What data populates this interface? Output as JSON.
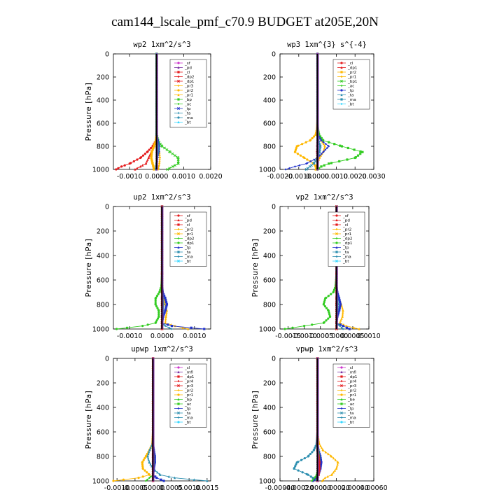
{
  "figure": {
    "title": "cam144_lscale_pmf_c70.9  BUDGET at205E,20N"
  },
  "colors": {
    "red": "#e41a1c",
    "magenta": "#cc33cc",
    "purple": "#7a2fa2",
    "orange": "#ffb800",
    "green": "#33cc22",
    "blue": "#2233cc",
    "teal": "#2d8fb0",
    "cyan": "#33d6ff"
  },
  "chart_data": [
    {
      "type": "line",
      "title": "wp2   1xm^2/s^3",
      "ylabel": "Pressure [hPa]",
      "ylim": [
        1000,
        0
      ],
      "yticks": [
        "0",
        "200",
        "400",
        "600",
        "800",
        "1000"
      ],
      "xlim": [
        -0.0016,
        0.002
      ],
      "xticks": [
        -0.001,
        0.0,
        0.001,
        0.002
      ],
      "xtick_labels": [
        "-0.0010",
        "0.0000",
        "0.0010",
        "0.0020"
      ],
      "grid": false,
      "legend_position": "top-right",
      "legend": [
        "_sf",
        "_pd",
        "_cl",
        "_dp2",
        "_dp1",
        "_pr3",
        "_pr2",
        "_pr1",
        "_bp",
        "_ac",
        "_tp",
        "_ta",
        "_ma",
        "_bt"
      ],
      "legend_colors": [
        "#cc33cc",
        "#7a2fa2",
        "#e41a1c",
        "#e41a1c",
        "#e41a1c",
        "#ffb800",
        "#ffb800",
        "#ffb800",
        "#33cc22",
        "#33cc22",
        "#2233cc",
        "#2d8fb0",
        "#2d8fb0",
        "#33d6ff"
      ],
      "pressure": [
        0,
        500,
        700,
        750,
        800,
        850,
        900,
        950,
        975,
        1000
      ],
      "series": [
        {
          "color": "#e41a1c",
          "values": [
            0,
            0,
            0,
            -3e-05,
            -0.00015,
            -0.00035,
            -0.0006,
            -0.001,
            -0.0013,
            -0.0015
          ]
        },
        {
          "color": "#e41a1c",
          "values": [
            0,
            0,
            0,
            -2e-05,
            -0.0001,
            -0.0002,
            -0.0003,
            -0.0004,
            -0.0006,
            -0.0008
          ]
        },
        {
          "color": "#ffb800",
          "values": [
            0,
            0,
            0,
            -3e-05,
            -0.0001,
            -0.00018,
            -0.0002,
            -0.00015,
            -0.00012,
            -0.0001
          ]
        },
        {
          "color": "#ffb800",
          "values": [
            0,
            0,
            0,
            2e-05,
            6e-05,
            0.0001,
            0.00012,
            0.0001,
            8e-05,
            6e-05
          ]
        },
        {
          "color": "#33cc22",
          "values": [
            0,
            0,
            0,
            5e-05,
            0.0002,
            0.0005,
            0.0008,
            0.0008,
            0.0006,
            0.0004
          ]
        },
        {
          "color": "#2233cc",
          "values": [
            0,
            0,
            0,
            5e-05,
            0.0001,
            8e-05,
            3e-05,
            0.0,
            -2e-05,
            -3e-05
          ]
        },
        {
          "color": "#2d8fb0",
          "values": [
            0,
            0,
            0,
            2e-05,
            5e-05,
            4e-05,
            2e-05,
            0.0,
            -1e-05,
            -2e-05
          ]
        },
        {
          "color": "#7a2fa2",
          "values": [
            0,
            0,
            0,
            0,
            0,
            0,
            0,
            0,
            0,
            0
          ]
        }
      ]
    },
    {
      "type": "line",
      "title": "wp3   1xm^{3} s^{-4}",
      "ylabel": "",
      "ylim": [
        1000,
        0
      ],
      "yticks": [
        "0",
        "200",
        "400",
        "600",
        "800",
        "1000"
      ],
      "xlim": [
        -0.002,
        0.003
      ],
      "xticks": [
        -0.002,
        -0.001,
        0.0,
        0.001,
        0.002,
        0.003
      ],
      "xtick_labels": [
        "-0.0020",
        "-0.0010",
        "0.0000",
        "0.0010",
        "0.0020",
        "0.0030"
      ],
      "grid": false,
      "legend_position": "top-right",
      "legend": [
        "_cl",
        "_dp1",
        "_pr2",
        "_pr1",
        "_bp1",
        "_ac",
        "_tp",
        "_ta",
        "_ma",
        "_bt"
      ],
      "legend_colors": [
        "#e41a1c",
        "#e41a1c",
        "#ffb800",
        "#ffb800",
        "#33cc22",
        "#33cc22",
        "#2233cc",
        "#2d8fb0",
        "#2d8fb0",
        "#33d6ff"
      ],
      "pressure": [
        0,
        550,
        650,
        700,
        750,
        800,
        850,
        900,
        950,
        975,
        1000
      ],
      "series": [
        {
          "color": "#ffb800",
          "values": [
            0,
            0,
            -3e-05,
            -0.0001,
            -0.0004,
            -0.0011,
            -0.0012,
            -0.0007,
            -0.0002,
            -0.0001,
            0.0
          ]
        },
        {
          "color": "#ffb800",
          "values": [
            0,
            0,
            2e-05,
            5e-05,
            0.0002,
            0.0004,
            0.0003,
            0.0001,
            0.0,
            -0.0001,
            -0.0001
          ]
        },
        {
          "color": "#33cc22",
          "values": [
            0,
            0,
            2e-05,
            8e-05,
            0.0003,
            0.0013,
            0.0024,
            0.002,
            0.0006,
            0.0002,
            0.0
          ]
        },
        {
          "color": "#2233cc",
          "values": [
            0,
            0,
            0,
            3e-05,
            0.0002,
            0.0006,
            0.0003,
            0.0,
            -0.0006,
            -0.0012,
            -0.0017
          ]
        },
        {
          "color": "#2d8fb0",
          "values": [
            0,
            0,
            0,
            1e-05,
            5e-05,
            0.00015,
            0.0001,
            0.0,
            -0.0002,
            -0.0004,
            -0.0006
          ]
        },
        {
          "color": "#e41a1c",
          "values": [
            0,
            0,
            0,
            0,
            0,
            -2e-05,
            -3e-05,
            -2e-05,
            0.0,
            0.0,
            0.0
          ]
        },
        {
          "color": "#7a2fa2",
          "values": [
            0,
            0,
            0,
            0,
            0,
            0,
            0,
            0,
            0,
            0,
            0
          ]
        }
      ]
    },
    {
      "type": "line",
      "title": "up2   1xm^2/s^3",
      "ylabel": "Pressure [hPa]",
      "ylim": [
        1000,
        0
      ],
      "yticks": [
        "0",
        "200",
        "400",
        "600",
        "800",
        "1000"
      ],
      "xlim": [
        -0.0015,
        0.0015
      ],
      "xticks": [
        -0.001,
        0.0,
        0.001
      ],
      "xtick_labels": [
        "-0.0010",
        "0.0000",
        "0.0010"
      ],
      "grid": false,
      "legend_position": "top-right",
      "legend": [
        "_sf",
        "_pd",
        "_cl",
        "_pr2",
        "_pr1",
        "_dp2",
        "_dp1",
        "_tp",
        "_ta",
        "_ma",
        "_bt"
      ],
      "legend_colors": [
        "#e41a1c",
        "#e41a1c",
        "#e41a1c",
        "#ffb800",
        "#ffb800",
        "#33cc22",
        "#33cc22",
        "#2233cc",
        "#2d8fb0",
        "#2d8fb0",
        "#33d6ff"
      ],
      "pressure": [
        0,
        550,
        650,
        700,
        750,
        800,
        850,
        900,
        950,
        975,
        1000
      ],
      "series": [
        {
          "color": "#33cc22",
          "values": [
            0,
            0,
            -2e-05,
            -8e-05,
            -0.0002,
            -0.0002,
            -0.0001,
            -0.0001,
            -0.0002,
            -0.0006,
            -0.0014
          ]
        },
        {
          "color": "#ffb800",
          "values": [
            0,
            0,
            0,
            2e-05,
            5e-05,
            0.0001,
            0.00015,
            0.00012,
            0.0001,
            0.0004,
            0.0008
          ]
        },
        {
          "color": "#2233cc",
          "values": [
            0,
            0,
            0,
            2e-05,
            0.0001,
            0.00015,
            0.0001,
            3e-05,
            0.0,
            0.0003,
            0.0013
          ]
        },
        {
          "color": "#2d8fb0",
          "values": [
            0,
            0,
            0,
            1e-05,
            3e-05,
            5e-05,
            3e-05,
            1e-05,
            0.0,
            0.0001,
            0.0003
          ]
        },
        {
          "color": "#e41a1c",
          "values": [
            0,
            0,
            0,
            0,
            0,
            0,
            0,
            0,
            0,
            0,
            0
          ]
        }
      ]
    },
    {
      "type": "line",
      "title": "vp2   1xm^2/s^3",
      "ylabel": "Pressure [hPa]",
      "ylim": [
        1000,
        0
      ],
      "yticks": [
        "0",
        "200",
        "400",
        "600",
        "800",
        "1000"
      ],
      "xlim": [
        -0.00175,
        0.001
      ],
      "xticks": [
        -0.0015,
        -0.001,
        -0.0005,
        0.0,
        0.0005,
        0.001
      ],
      "xtick_labels": [
        "-0.0015",
        "-0.0010",
        "-0.0005",
        "0.0000",
        "0.0005",
        "0.0010"
      ],
      "grid": false,
      "legend_position": "top-right",
      "legend": [
        "_sf",
        "_pd",
        "_cl",
        "_pr2",
        "_pr1",
        "_dp2",
        "_dp1",
        "_tp",
        "_ta",
        "_ma",
        "_bt"
      ],
      "legend_colors": [
        "#e41a1c",
        "#e41a1c",
        "#e41a1c",
        "#ffb800",
        "#ffb800",
        "#33cc22",
        "#33cc22",
        "#2233cc",
        "#2d8fb0",
        "#2d8fb0",
        "#33d6ff"
      ],
      "pressure": [
        0,
        550,
        650,
        700,
        750,
        800,
        850,
        900,
        950,
        975,
        1000
      ],
      "series": [
        {
          "color": "#33cc22",
          "values": [
            0,
            0,
            -3e-05,
            -0.0001,
            -0.00035,
            -0.0004,
            -0.00025,
            -0.0002,
            -0.0004,
            -0.001,
            -0.0016
          ]
        },
        {
          "color": "#ffb800",
          "values": [
            0,
            0,
            0,
            2e-05,
            8e-05,
            0.00015,
            0.0002,
            0.00018,
            0.0001,
            0.0003,
            0.0007
          ]
        },
        {
          "color": "#2233cc",
          "values": [
            0,
            0,
            0,
            2e-05,
            8e-05,
            0.00012,
            8e-05,
            2e-05,
            0.0,
            0.0002,
            0.0004
          ]
        },
        {
          "color": "#2d8fb0",
          "values": [
            0,
            0,
            0,
            1e-05,
            3e-05,
            5e-05,
            3e-05,
            1e-05,
            0.0,
            0.0001,
            0.0002
          ]
        },
        {
          "color": "#e41a1c",
          "values": [
            0,
            0,
            0,
            0,
            0,
            0,
            0,
            0,
            0,
            0,
            0
          ]
        }
      ]
    },
    {
      "type": "line",
      "title": "upwp   1xm^2/s^3",
      "ylabel": "Pressure [hPa]",
      "ylim": [
        1000,
        0
      ],
      "yticks": [
        "0",
        "200",
        "400",
        "600",
        "800",
        "1000"
      ],
      "xlim": [
        -0.0011,
        0.0016
      ],
      "xticks": [
        -0.001,
        -0.0005,
        0.0,
        0.0005,
        0.001,
        0.0015
      ],
      "xtick_labels": [
        "-0.0010",
        "-0.0005",
        "0.0000",
        "0.0005",
        "0.0010",
        "0.0015"
      ],
      "grid": false,
      "legend_position": "top-right",
      "legend": [
        "_cl",
        "_mfl",
        "_dp1",
        "_pr4",
        "_pr3",
        "_pr2",
        "_pr1",
        "_bp",
        "_ac",
        "_tp",
        "_ta",
        "_ma",
        "_bt"
      ],
      "legend_colors": [
        "#cc33cc",
        "#7a2fa2",
        "#e41a1c",
        "#e41a1c",
        "#e41a1c",
        "#ffb800",
        "#ffb800",
        "#33cc22",
        "#33cc22",
        "#2233cc",
        "#2d8fb0",
        "#2d8fb0",
        "#33d6ff"
      ],
      "pressure": [
        0,
        600,
        700,
        750,
        800,
        850,
        900,
        950,
        975,
        1000
      ],
      "series": [
        {
          "color": "#ffb800",
          "values": [
            0,
            0,
            -2e-05,
            -0.0001,
            -0.0002,
            -0.0003,
            -0.00028,
            -0.0001,
            -0.0004,
            -0.0011
          ]
        },
        {
          "color": "#2d8fb0",
          "values": [
            0,
            0,
            -2e-05,
            -0.0001,
            -0.00015,
            -0.0001,
            0.0,
            0.0002,
            0.0006,
            0.0015
          ]
        },
        {
          "color": "#2233cc",
          "values": [
            0,
            0,
            0,
            2e-05,
            5e-05,
            5e-05,
            2e-05,
            0.0,
            0.0001,
            0.0003
          ]
        },
        {
          "color": "#33cc22",
          "values": [
            0,
            0,
            0,
            1e-05,
            2e-05,
            2e-05,
            1e-05,
            0.0,
            -0.0001,
            -0.0002
          ]
        },
        {
          "color": "#e41a1c",
          "values": [
            0,
            0,
            0,
            0,
            0,
            0,
            0,
            0,
            0,
            0
          ]
        },
        {
          "color": "#7a2fa2",
          "values": [
            0,
            0,
            0,
            0,
            0,
            0,
            0,
            0,
            0,
            0
          ]
        }
      ]
    },
    {
      "type": "line",
      "title": "vpwp   1xm^2/s^3",
      "ylabel": "Pressure [hPa]",
      "ylim": [
        1000,
        0
      ],
      "yticks": [
        "0",
        "200",
        "400",
        "600",
        "800",
        "1000"
      ],
      "xlim": [
        -0.0004,
        0.0006
      ],
      "xticks": [
        -0.0004,
        -0.0002,
        0.0,
        0.0002,
        0.0004,
        0.0006
      ],
      "xtick_labels": [
        "-0.00040",
        "-0.00020",
        "0.00000",
        "0.00020",
        "0.00040",
        "0.00060"
      ],
      "grid": false,
      "legend_position": "top-right",
      "legend": [
        "_cl",
        "_mfl",
        "_dp1",
        "_pr4",
        "_pr3",
        "_pr2",
        "_pr1",
        "_be",
        "_ac",
        "_tp",
        "_ta",
        "_ma",
        "_bt"
      ],
      "legend_colors": [
        "#cc33cc",
        "#7a2fa2",
        "#e41a1c",
        "#e41a1c",
        "#e41a1c",
        "#ffb800",
        "#ffb800",
        "#33cc22",
        "#33cc22",
        "#2233cc",
        "#2d8fb0",
        "#2d8fb0",
        "#33d6ff"
      ],
      "pressure": [
        0,
        600,
        700,
        750,
        800,
        850,
        900,
        950,
        975,
        1000
      ],
      "series": [
        {
          "color": "#2d8fb0",
          "values": [
            0,
            0,
            -1e-05,
            -4e-05,
            -0.0001,
            -0.00022,
            -0.00025,
            -0.0001,
            -5e-05,
            0.0
          ]
        },
        {
          "color": "#ffb800",
          "values": [
            0,
            0,
            2e-05,
            6e-05,
            0.00015,
            0.00022,
            0.0002,
            0.00015,
            8e-05,
            5e-05
          ]
        },
        {
          "color": "#2233cc",
          "values": [
            0,
            0,
            0,
            1e-05,
            3e-05,
            4e-05,
            3e-05,
            1e-05,
            -2e-05,
            -5e-05
          ]
        },
        {
          "color": "#33cc22",
          "values": [
            0,
            0,
            0,
            1e-05,
            2e-05,
            2e-05,
            0.0,
            -1e-05,
            -3e-05,
            -6e-05
          ]
        },
        {
          "color": "#e41a1c",
          "values": [
            0,
            0,
            0,
            0,
            1e-05,
            2e-05,
            2e-05,
            1e-05,
            0.0,
            0.0
          ]
        },
        {
          "color": "#7a2fa2",
          "values": [
            0,
            0,
            0,
            0,
            0,
            0,
            0,
            0,
            0,
            0
          ]
        }
      ]
    }
  ]
}
